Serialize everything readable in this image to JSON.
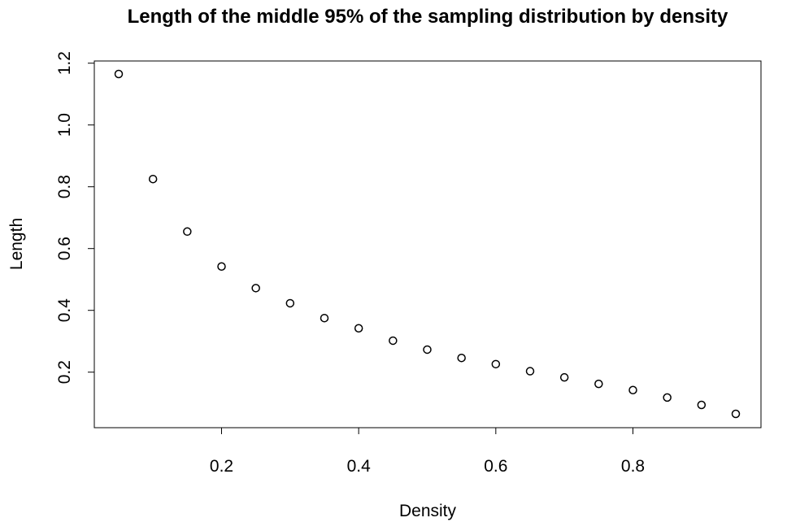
{
  "chart_data": {
    "type": "scatter",
    "title": "Length of the middle 95% of the sampling distribution by density",
    "xlabel": "Density",
    "ylabel": "Length",
    "xlim": [
      0.05,
      0.95
    ],
    "ylim": [
      0.065,
      1.165
    ],
    "x_ticks": [
      0.2,
      0.4,
      0.6,
      0.8
    ],
    "x_tick_labels": [
      "0.2",
      "0.4",
      "0.6",
      "0.8"
    ],
    "y_ticks": [
      0.2,
      0.4,
      0.6,
      0.8,
      1.0,
      1.2
    ],
    "y_tick_labels": [
      "0.2",
      "0.4",
      "0.6",
      "0.8",
      "1.0",
      "1.2"
    ],
    "grid": false,
    "marker": "open-circle",
    "point_color": "#000000",
    "series": [
      {
        "x": [
          0.05,
          0.1,
          0.15,
          0.2,
          0.25,
          0.3,
          0.35,
          0.4,
          0.45,
          0.5,
          0.55,
          0.6,
          0.65,
          0.7,
          0.75,
          0.8,
          0.85,
          0.9,
          0.95
        ],
        "y": [
          1.165,
          0.825,
          0.655,
          0.542,
          0.472,
          0.423,
          0.375,
          0.342,
          0.302,
          0.273,
          0.246,
          0.226,
          0.203,
          0.183,
          0.162,
          0.142,
          0.118,
          0.094,
          0.065
        ]
      }
    ]
  }
}
